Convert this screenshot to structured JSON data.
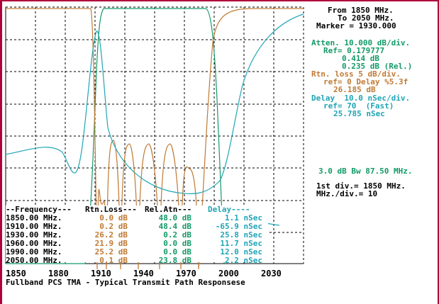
{
  "info": {
    "from": "From 1850 MHz.",
    "to": "To 2050 MHz.",
    "marker": "Marker = 1930.000",
    "atten": "Atten. 10.000 dB/div.",
    "ref": "Ref= 0.179777",
    "v1": "0.414 dB",
    "v2": "0.235 dB (Rel.)",
    "rtn": "Rtn. loss 5 dB/div.",
    "rtnref": "ref= 0 Delay %5.3f",
    "rtnval": "26.185 dB",
    "delay": "Delay  10.0 nSec/div.",
    "delayref": "ref= 70  (Fast)",
    "delayval": "25.785 nSec",
    "bw": "3.0 dB Bw 87.50 MHz.",
    "firstdiv": "1st div.= 1850 MHz.",
    "mhzdiv": "MHz./div.= 10"
  },
  "table": {
    "hdr_freq": "--Frequency---",
    "hdr_rtn": "Rtn.Loss---",
    "hdr_rel": "Rel.Atn---",
    "hdr_delay": "Delay----",
    "rows": [
      {
        "freq": "1850.00 MHz.",
        "rtn": "0.0 dB",
        "rel": "48.0 dB",
        "delay": "1.1 nSec"
      },
      {
        "freq": "1910.00 MHz.",
        "rtn": "0.2 dB",
        "rel": "48.4 dB",
        "delay": "-65.9 nSec"
      },
      {
        "freq": "1930.00 MHz.",
        "rtn": "26.2 dB",
        "rel": "0.2 dB",
        "delay": "25.8 nSec"
      },
      {
        "freq": "1960.00 MHz.",
        "rtn": "21.9 dB",
        "rel": "0.0 dB",
        "delay": "11.7 nSec"
      },
      {
        "freq": "1990.00 MHz.",
        "rtn": "25.2 dB",
        "rel": "0.0 dB",
        "delay": "12.0 nSec"
      },
      {
        "freq": "2050.00 MHz.",
        "rtn": "0.1 dB",
        "rel": "23.8 dB",
        "delay": "2.2 nSec"
      }
    ]
  },
  "xticks": [
    "1850",
    "1880",
    "1910",
    "1940",
    "1970",
    "2000",
    "2030"
  ],
  "caption": "Fullband PCS TMA - Typical Transmit Path Responsese",
  "colors": {
    "frame": "#b0003a",
    "atten": "#139a67",
    "rtn": "#c07a35",
    "delay": "#1fa5b5"
  }
}
